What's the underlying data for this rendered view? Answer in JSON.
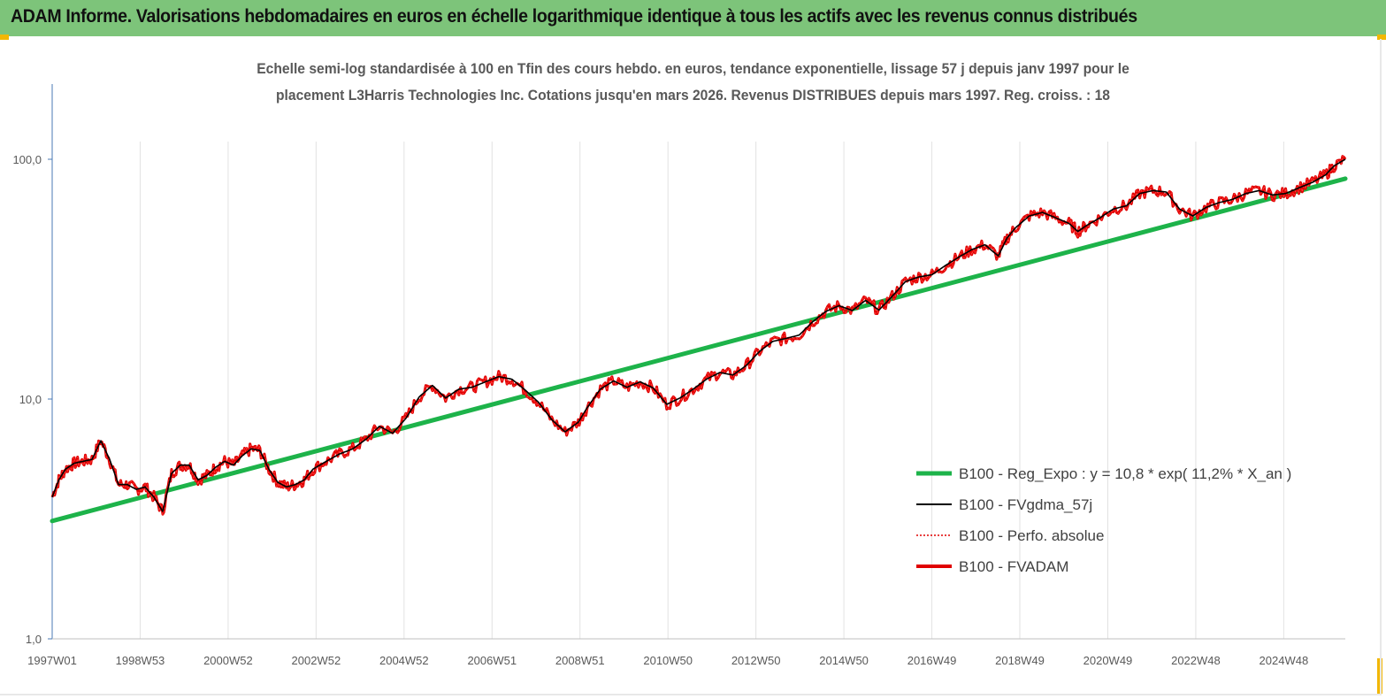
{
  "header": {
    "title": "ADAM Informe. Valorisations hebdomadaires en euros en échelle logarithmique identique à tous les actifs avec les revenus connus distribués"
  },
  "chart_data": {
    "type": "line",
    "title_line1": "Echelle semi-log standardisée à 100 en Tfin des cours hebdo. en euros, tendance exponentielle, lissage 57 j depuis janv 1997 pour le",
    "title_line2": "placement L3Harris Technologies Inc. Cotations jusqu'en mars 2026. Revenus DISTRIBUES depuis mars 1997. Reg. croiss. : 18",
    "y_scale": "log",
    "ylim": [
      1,
      100
    ],
    "y_ticks": [
      "100,0",
      "10,0",
      "1,0"
    ],
    "x_ticks": [
      "1997W01",
      "1998W53",
      "2000W52",
      "2002W52",
      "2004W52",
      "2006W51",
      "2008W51",
      "2010W50",
      "2012W50",
      "2014W50",
      "2016W49",
      "2018W49",
      "2020W49",
      "2022W48",
      "2024W48"
    ],
    "xlim_years": [
      1997.0,
      2026.25
    ],
    "grid": "vertical",
    "legend_position": "bottom-right",
    "series": [
      {
        "name": "B100 - Reg_Expo : y = 10,8 * exp( 11,2% *  X_an )",
        "kind": "trend",
        "color": "#1db34a",
        "x": [
          1997.0,
          2026.25
        ],
        "y": [
          3.1,
          83.0
        ]
      },
      {
        "name": "B100 - FVgdma_57j",
        "kind": "smoothed",
        "color": "#000000"
      },
      {
        "name": "B100 - Perfo. absolue",
        "kind": "dotted",
        "color": "#e00000"
      },
      {
        "name": "B100 - FVADAM",
        "kind": "main",
        "color": "#e00000",
        "x": [
          1997.0,
          1997.15,
          1997.3,
          1997.5,
          1997.7,
          1997.9,
          1998.1,
          1998.3,
          1998.5,
          1998.7,
          1998.9,
          1999.1,
          1999.3,
          1999.5,
          1999.7,
          1999.9,
          2000.1,
          2000.3,
          2000.5,
          2000.7,
          2000.9,
          2001.1,
          2001.3,
          2001.5,
          2001.7,
          2001.9,
          2002.1,
          2002.3,
          2002.5,
          2002.7,
          2002.9,
          2003.2,
          2003.5,
          2003.8,
          2004.1,
          2004.4,
          2004.7,
          2005.0,
          2005.3,
          2005.6,
          2005.9,
          2006.2,
          2006.5,
          2006.8,
          2007.1,
          2007.4,
          2007.7,
          2008.0,
          2008.3,
          2008.6,
          2008.9,
          2009.1,
          2009.4,
          2009.7,
          2010.0,
          2010.3,
          2010.6,
          2010.9,
          2011.2,
          2011.5,
          2011.8,
          2012.1,
          2012.4,
          2012.7,
          2013.0,
          2013.3,
          2013.6,
          2013.9,
          2014.2,
          2014.5,
          2014.8,
          2015.1,
          2015.4,
          2015.7,
          2016.0,
          2016.3,
          2016.6,
          2016.9,
          2017.2,
          2017.5,
          2017.8,
          2018.1,
          2018.4,
          2018.6,
          2018.8,
          2019.1,
          2019.4,
          2019.7,
          2020.0,
          2020.2,
          2020.4,
          2020.7,
          2021.0,
          2021.3,
          2021.6,
          2021.9,
          2022.2,
          2022.5,
          2022.8,
          2023.1,
          2023.4,
          2023.7,
          2024.0,
          2024.3,
          2024.6,
          2024.9,
          2025.2,
          2025.5,
          2025.8,
          2026.0,
          2026.25
        ],
        "y": [
          3.9,
          4.6,
          5.1,
          5.4,
          5.5,
          5.6,
          6.7,
          5.6,
          4.4,
          4.4,
          4.2,
          4.3,
          3.9,
          3.4,
          4.9,
          5.3,
          5.3,
          4.6,
          4.8,
          5.2,
          5.5,
          5.3,
          5.8,
          6.2,
          6.1,
          5.1,
          4.5,
          4.3,
          4.4,
          4.6,
          5.1,
          5.5,
          5.9,
          6.2,
          6.8,
          7.7,
          7.2,
          8.3,
          10.2,
          11.4,
          10.1,
          11.0,
          11.2,
          11.8,
          12.4,
          12.1,
          10.9,
          9.7,
          8.2,
          7.3,
          8.0,
          9.2,
          11.0,
          11.9,
          11.2,
          11.8,
          11.1,
          9.5,
          10.1,
          11.0,
          12.1,
          12.9,
          12.6,
          13.8,
          15.8,
          17.4,
          17.9,
          18.5,
          21.0,
          23.2,
          24.5,
          23.4,
          25.8,
          23.5,
          26.8,
          30.9,
          32.3,
          33.0,
          36.0,
          39.0,
          42.0,
          44.0,
          39.5,
          47.0,
          52.0,
          58.0,
          60.0,
          57.0,
          54.0,
          50.0,
          53.0,
          57.0,
          62.0,
          64.0,
          72.0,
          74.0,
          73.0,
          62.0,
          58.0,
          63.0,
          66.0,
          68.0,
          72.0,
          74.0,
          71.0,
          72.0,
          76.0,
          80.0,
          86.0,
          94.0,
          100.0
        ]
      }
    ]
  }
}
